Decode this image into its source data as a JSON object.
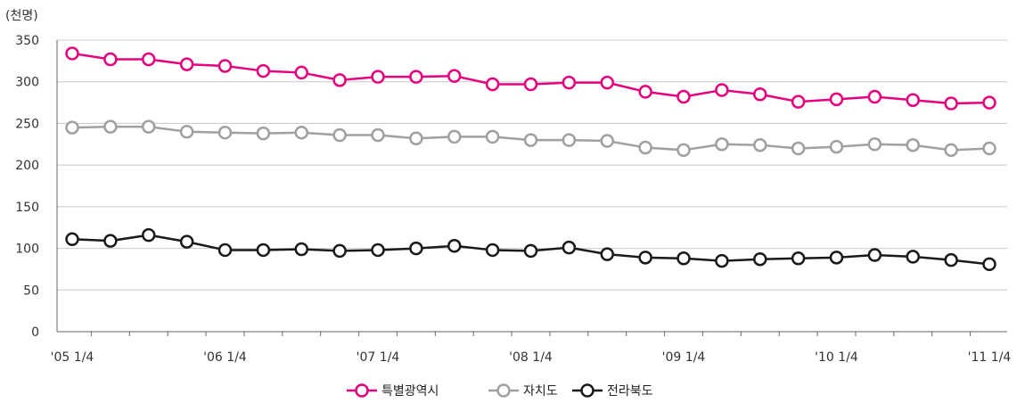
{
  "chart_data": {
    "type": "line",
    "unit_label": "(천명)",
    "ylim": [
      0,
      350
    ],
    "y_ticks": [
      0,
      50,
      100,
      150,
      200,
      250,
      300,
      350
    ],
    "grid": true,
    "legend_position": "bottom-center",
    "x_tick_labels": [
      "'05 1/4",
      "'06 1/4",
      "'07 1/4",
      "'08 1/4",
      "'09 1/4",
      "'10 1/4",
      "'11 1/4"
    ],
    "x_tick_label_indices": [
      0,
      4,
      8,
      12,
      16,
      20,
      24
    ],
    "n_points": 25,
    "series": [
      {
        "name": "특별광역시",
        "color": "#e5007e",
        "values": [
          334,
          327,
          327,
          321,
          319,
          313,
          311,
          302,
          306,
          306,
          307,
          297,
          297,
          299,
          299,
          288,
          282,
          290,
          285,
          276,
          279,
          282,
          278,
          274,
          275
        ]
      },
      {
        "name": "자치도",
        "color": "#a0a0a0",
        "values": [
          245,
          246,
          246,
          240,
          239,
          238,
          239,
          236,
          236,
          232,
          234,
          234,
          230,
          230,
          229,
          221,
          218,
          225,
          224,
          220,
          222,
          225,
          224,
          218,
          220
        ]
      },
      {
        "name": "전라북도",
        "color": "#1a1a1a",
        "values": [
          111,
          109,
          116,
          108,
          98,
          98,
          99,
          97,
          98,
          100,
          103,
          98,
          97,
          101,
          93,
          89,
          88,
          85,
          87,
          88,
          89,
          92,
          90,
          86,
          81
        ]
      }
    ]
  }
}
